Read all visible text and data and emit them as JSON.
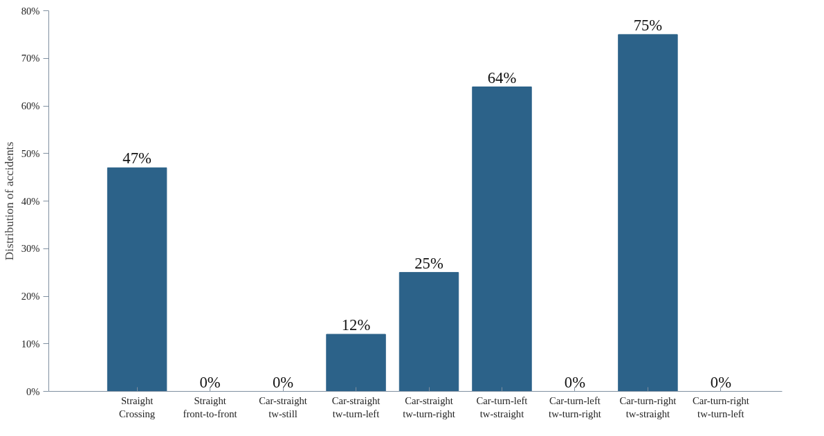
{
  "chart_data": {
    "type": "bar",
    "ylabel": "Distribution of accidents",
    "categories": [
      "Straight\nCrossing",
      "Straight\nfront-to-front",
      "Car-straight\ntw-still",
      "Car-straight\ntw-turn-left",
      "Car-straight\ntw-turn-right",
      "Car-turn-left\ntw-straight",
      "Car-turn-left\ntw-turn-right",
      "Car-turn-right\ntw-straight",
      "Car-turn-right\ntw-turn-left"
    ],
    "values": [
      47,
      0,
      0,
      12,
      25,
      64,
      0,
      75,
      0
    ],
    "value_labels": [
      "47%",
      "0%",
      "0%",
      "12%",
      "25%",
      "64%",
      "0%",
      "75%",
      "0%"
    ],
    "color": "#2c6289",
    "ylim": [
      0,
      80
    ],
    "yticks": [
      {
        "value": 0,
        "label": "0%"
      },
      {
        "value": 10,
        "label": "10%"
      },
      {
        "value": 20,
        "label": "20%"
      },
      {
        "value": 30,
        "label": "30%"
      },
      {
        "value": 40,
        "label": "40%"
      },
      {
        "value": 50,
        "label": "50%"
      },
      {
        "value": 60,
        "label": "60%"
      },
      {
        "value": 70,
        "label": "70%"
      },
      {
        "value": 80,
        "label": "80%"
      }
    ],
    "grid": false
  }
}
